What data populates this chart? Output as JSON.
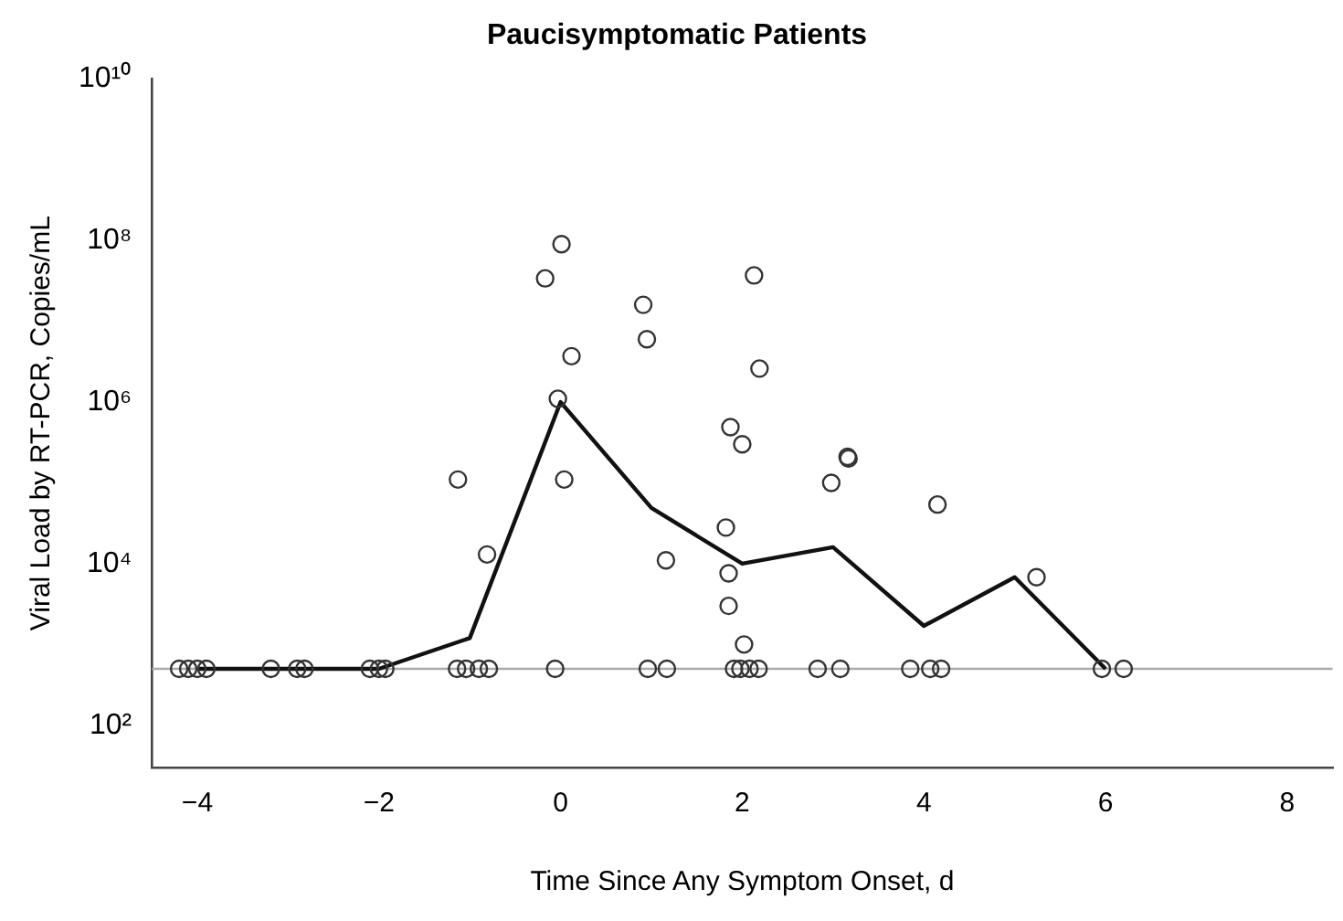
{
  "chart_data": {
    "type": "scatter",
    "title": "Paucisymptomatic Patients",
    "xlabel": "Time Since Any Symptom Onset, d",
    "ylabel": "Viral Load by RT-PCR, Copies/mL",
    "log": "y",
    "grid": false,
    "legend": false,
    "marker": "circle",
    "xlim": [
      -4.5,
      8.5
    ],
    "xticks": [
      -4,
      -2,
      0,
      2,
      4,
      6,
      8
    ],
    "ylim": [
      30,
      10000000000
    ],
    "yticks": [
      {
        "value": 100,
        "label": "10²"
      },
      {
        "value": 10000,
        "label": "10⁴"
      },
      {
        "value": 1000000,
        "label": "10⁶"
      },
      {
        "value": 100000000,
        "label": "10⁸"
      },
      {
        "value": 10000000000,
        "label": "10¹⁰"
      }
    ],
    "ref_lines": [
      {
        "axis": "y",
        "value": 500,
        "color": "#aaaaaa"
      }
    ],
    "series": [
      {
        "type": "scatter",
        "color": "#333333",
        "x": [
          -4.2,
          -4.1,
          -4.0,
          -3.9,
          -3.19,
          -2.9,
          -2.82,
          -2.1,
          -2.0,
          -1.93,
          -1.14,
          -1.04,
          -0.9,
          -0.79,
          -0.06,
          0.96,
          1.17,
          1.91,
          1.98,
          2.08,
          2.18,
          2.83,
          3.08,
          3.85,
          4.07,
          4.19,
          5.96,
          6.2,
          -1.13,
          -0.81,
          0.01,
          -0.17,
          0.12,
          -0.03,
          0.04,
          0.91,
          0.95,
          1.16,
          2.13,
          2.19,
          1.87,
          2.0,
          1.82,
          1.85,
          1.85,
          2.02,
          2.98,
          3.16,
          3.17,
          4.15,
          5.24
        ],
        "values": [
          500,
          500,
          500,
          500,
          500,
          500,
          500,
          500,
          500,
          500,
          500,
          500,
          500,
          500,
          500,
          500,
          500,
          500,
          500,
          500,
          500,
          500,
          500,
          500,
          500,
          500,
          500,
          500,
          110000,
          13000,
          90000000,
          34000000,
          3700000,
          1100000,
          110000,
          16000000,
          6000000,
          11000,
          37000000,
          2600000,
          490000,
          300000,
          28000,
          7600,
          3000,
          1000,
          100000,
          210000,
          200000,
          54000,
          6800
        ]
      },
      {
        "type": "line",
        "color": "#111111",
        "marker": "none",
        "x": [
          -4,
          -3,
          -2,
          -1,
          0,
          1,
          2,
          3,
          4,
          5,
          6
        ],
        "values": [
          500,
          500,
          500,
          1200,
          1000000,
          49000,
          10000,
          16000,
          1700,
          6800,
          500
        ]
      }
    ]
  }
}
